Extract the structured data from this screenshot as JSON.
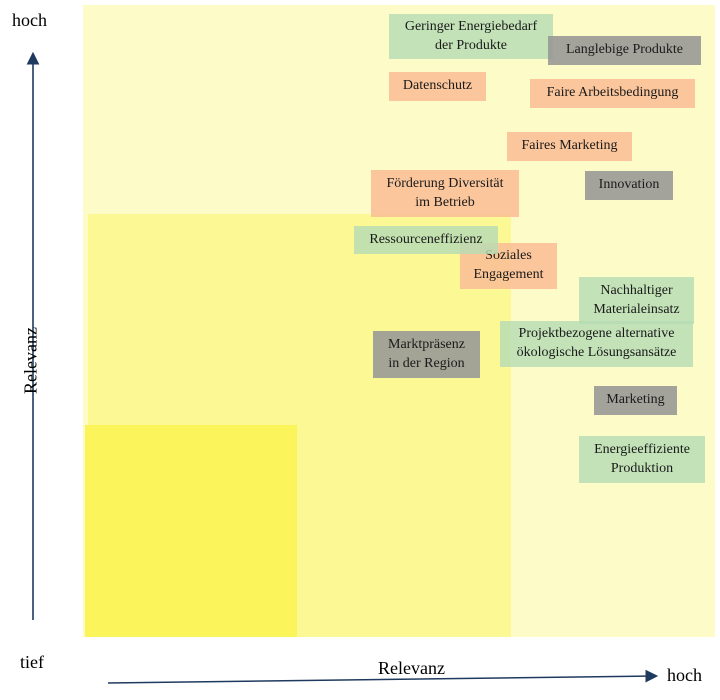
{
  "axes": {
    "y_high": "hoch",
    "y_low": "tief",
    "y_label": "Relevanz",
    "x_label": "Relevanz",
    "x_high": "hoch"
  },
  "colors": {
    "green": "#b6dcb4",
    "orange": "#fabe96",
    "gray": "#969696",
    "zone_outer": "#fdfbc7",
    "zone_mid": "#fcf894",
    "zone_inner": "#fbf45a",
    "axis": "#1f3a5f"
  },
  "topics": [
    {
      "id": "geringer-energiebedarf",
      "lines": [
        "Geringer Energiebedarf",
        "der Produkte"
      ],
      "color": "green"
    },
    {
      "id": "langlebige-produkte",
      "lines": [
        "Langlebige Produkte"
      ],
      "color": "gray"
    },
    {
      "id": "datenschutz",
      "lines": [
        "Datenschutz"
      ],
      "color": "orange"
    },
    {
      "id": "faire-arbeitsbedingung",
      "lines": [
        "Faire Arbeitsbedingung"
      ],
      "color": "orange"
    },
    {
      "id": "faires-marketing",
      "lines": [
        "Faires Marketing"
      ],
      "color": "orange"
    },
    {
      "id": "foerderung-diversitaet",
      "lines": [
        "Förderung Diversität",
        "im Betrieb"
      ],
      "color": "orange"
    },
    {
      "id": "innovation",
      "lines": [
        "Innovation"
      ],
      "color": "gray"
    },
    {
      "id": "ressourceneffizienz",
      "lines": [
        "Ressourceneffizienz"
      ],
      "color": "green"
    },
    {
      "id": "soziales-engagement",
      "lines": [
        "Soziales",
        "Engagement"
      ],
      "color": "orange"
    },
    {
      "id": "nachhaltiger-materialeinsatz",
      "lines": [
        "Nachhaltiger",
        "Materialeinsatz"
      ],
      "color": "green"
    },
    {
      "id": "projektbezogene-loesungen",
      "lines": [
        "Projektbezogene alternative",
        "ökologische Lösungsansätze"
      ],
      "color": "green"
    },
    {
      "id": "marktpraesenz",
      "lines": [
        "Marktpräsenz",
        "in der Region"
      ],
      "color": "gray"
    },
    {
      "id": "marketing",
      "lines": [
        "Marketing"
      ],
      "color": "gray"
    },
    {
      "id": "energieeffiziente-produktion",
      "lines": [
        "Energieeffiziente",
        "Produktion"
      ],
      "color": "green"
    }
  ]
}
